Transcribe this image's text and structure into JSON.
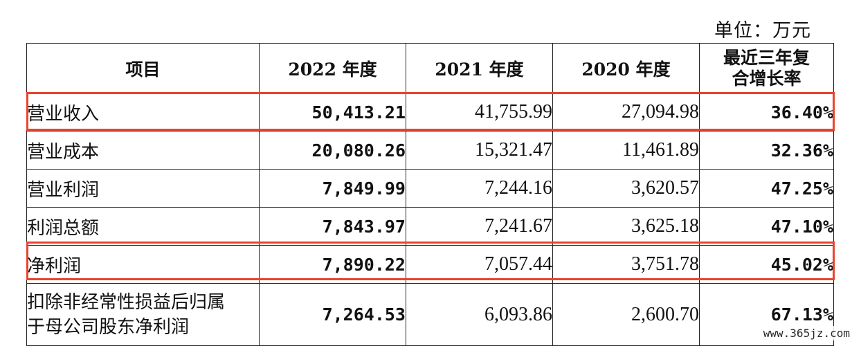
{
  "unit_label": "单位：万元",
  "headers": {
    "item": "项目",
    "y2022": "2022 年度",
    "y2021": "2021 年度",
    "y2020": "2020 年度",
    "cagr_line1": "最近三年复",
    "cagr_line2": "合增长率"
  },
  "rows": [
    {
      "label": "营业收入",
      "v2022": "50,413.21",
      "v2021": "41,755.99",
      "v2020": "27,094.98",
      "cagr": "36.40%"
    },
    {
      "label": "营业成本",
      "v2022": "20,080.26",
      "v2021": "15,321.47",
      "v2020": "11,461.89",
      "cagr": "32.36%"
    },
    {
      "label": "营业利润",
      "v2022": "7,849.99",
      "v2021": "7,244.16",
      "v2020": "3,620.57",
      "cagr": "47.25%"
    },
    {
      "label": "利润总额",
      "v2022": "7,843.97",
      "v2021": "7,241.67",
      "v2020": "3,625.18",
      "cagr": "47.10%"
    },
    {
      "label": "净利润",
      "v2022": "7,890.22",
      "v2021": "7,057.44",
      "v2020": "3,751.78",
      "cagr": "45.02%"
    },
    {
      "label_line1": "扣除非经常性损益后归属",
      "label_line2": "于母公司股东净利润",
      "v2022": "7,264.53",
      "v2021": "6,093.86",
      "v2020": "2,600.70",
      "cagr": "67.13%"
    }
  ],
  "highlighted_rows": [
    "营业收入",
    "净利润"
  ],
  "highlight_color": "#e8432d",
  "watermark": "www.365jz.com"
}
